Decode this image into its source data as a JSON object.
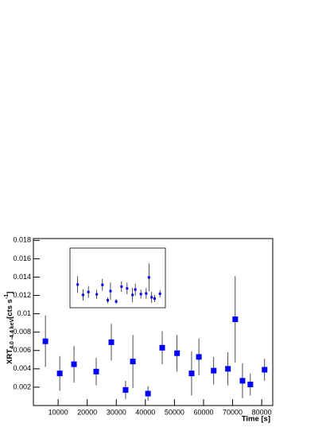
{
  "chart_data": {
    "type": "errorbar",
    "x_label": "Time [s]",
    "y_label": [
      "XRT",
      "4.0 -4.4 keV",
      "[cts s",
      "-1",
      "]"
    ],
    "x": [
      5630,
      10550,
      15460,
      23100,
      28300,
      33200,
      35700,
      40900,
      45800,
      50900,
      55900,
      58400,
      63500,
      68400,
      70900,
      73400,
      76100,
      81000
    ],
    "series": [
      {
        "color": "#0000ff",
        "values": [
          0.007,
          0.0035,
          0.0045,
          0.0037,
          0.0069,
          0.0017,
          0.0048,
          0.0013,
          0.0063,
          0.0057,
          0.0035,
          0.0053,
          0.0038,
          0.004,
          0.0094,
          0.0027,
          0.0023,
          0.0039
        ],
        "errors": [
          0.0028,
          0.0019,
          0.002,
          0.0015,
          0.002,
          0.001,
          0.0029,
          0.0008,
          0.0018,
          0.002,
          0.0024,
          0.002,
          0.0015,
          0.0018,
          0.0047,
          0.0019,
          0.0012,
          0.0012
        ]
      }
    ],
    "xlim": [
      1500,
      83800
    ],
    "ylim": [
      0,
      0.0182
    ],
    "xticks": [
      10000,
      20000,
      30000,
      40000,
      50000,
      60000,
      70000,
      80000
    ],
    "yticks": [
      0.002,
      0.004,
      0.006,
      0.008,
      0.01,
      0.012,
      0.014,
      0.016,
      0.018
    ]
  }
}
